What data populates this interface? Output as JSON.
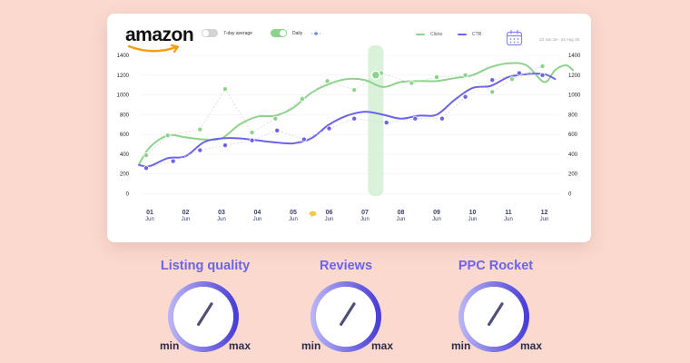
{
  "brand": {
    "name": "amazon"
  },
  "toggles": [
    {
      "label": "7-day average",
      "on": false
    },
    {
      "label": "Daily",
      "on": true
    }
  ],
  "legend": [
    {
      "label": "Clicks",
      "color": "#8ed38c"
    },
    {
      "label": "CTR",
      "color": "#6c63e8"
    }
  ],
  "date_range": "23 Jun 19 - 24 Aug 19",
  "chart_data": {
    "type": "line",
    "categories": [
      "01 Jun",
      "02 Jun",
      "03 Jun",
      "04 Jun",
      "05 Jun",
      "06 Jun",
      "07 Jun",
      "08 Jun",
      "09 Jun",
      "10 Jun",
      "11 Jun",
      "12 Jun"
    ],
    "tick_days": [
      "01",
      "02",
      "03",
      "04",
      "05",
      "06",
      "07",
      "08",
      "09",
      "10",
      "11",
      "12"
    ],
    "tick_month": "Jun",
    "y_ticks": [
      0,
      200,
      400,
      600,
      800,
      1000,
      1200,
      1400
    ],
    "ylim": [
      0,
      1400
    ],
    "highlight_category_index": 6.3,
    "series": [
      {
        "name": "Clicks",
        "color": "#8ed38c",
        "line_x": [
          -0.3,
          0.0,
          0.5,
          1.0,
          1.5,
          2.0,
          2.5,
          3.0,
          3.5,
          4.0,
          4.5,
          5.0,
          5.5,
          6.0,
          6.5,
          7.0,
          7.5,
          8.0,
          8.5,
          9.0,
          9.5,
          10.0,
          10.5,
          11.0,
          11.3,
          11.6,
          11.8
        ],
        "line_y": [
          300,
          470,
          590,
          570,
          550,
          560,
          700,
          780,
          790,
          870,
          1020,
          1110,
          1160,
          1150,
          1080,
          1130,
          1140,
          1140,
          1170,
          1200,
          1280,
          1320,
          1300,
          1130,
          1250,
          1300,
          1250
        ],
        "points_x": [
          -0.1,
          0.5,
          1.4,
          2.1,
          2.85,
          3.5,
          4.25,
          4.95,
          5.7,
          6.45,
          7.3,
          8.0,
          8.8,
          9.55,
          10.1,
          10.95
        ],
        "points_y": [
          390,
          590,
          650,
          1060,
          620,
          760,
          960,
          1140,
          1050,
          1220,
          1120,
          1180,
          1200,
          1030,
          1160,
          1290
        ]
      },
      {
        "name": "CTR",
        "color": "#6c63e8",
        "line_x": [
          -0.3,
          0.0,
          0.5,
          1.0,
          1.5,
          2.0,
          2.5,
          3.0,
          3.5,
          4.0,
          4.5,
          5.0,
          5.5,
          6.0,
          6.5,
          7.0,
          7.5,
          8.0,
          8.5,
          9.0,
          9.5,
          10.0,
          10.5,
          11.0,
          11.3
        ],
        "line_y": [
          290,
          280,
          360,
          380,
          520,
          560,
          560,
          540,
          520,
          510,
          560,
          700,
          790,
          830,
          800,
          760,
          790,
          800,
          950,
          1070,
          1090,
          1180,
          1210,
          1210,
          1160
        ],
        "points_x": [
          -0.1,
          0.65,
          1.4,
          2.1,
          2.85,
          3.55,
          4.3,
          5.0,
          5.7,
          6.6,
          7.4,
          8.15,
          8.8,
          9.55,
          10.3,
          10.95
        ],
        "points_y": [
          260,
          330,
          440,
          490,
          540,
          640,
          550,
          660,
          760,
          720,
          760,
          760,
          980,
          1150,
          1220,
          1200
        ]
      }
    ]
  },
  "gauges": [
    {
      "title": "Listing quality",
      "min_label": "min",
      "max_label": "max",
      "value": 0.62
    },
    {
      "title": "Reviews",
      "min_label": "min",
      "max_label": "max",
      "value": 0.62
    },
    {
      "title": "PPC Rocket",
      "min_label": "min",
      "max_label": "max",
      "value": 0.62
    }
  ]
}
